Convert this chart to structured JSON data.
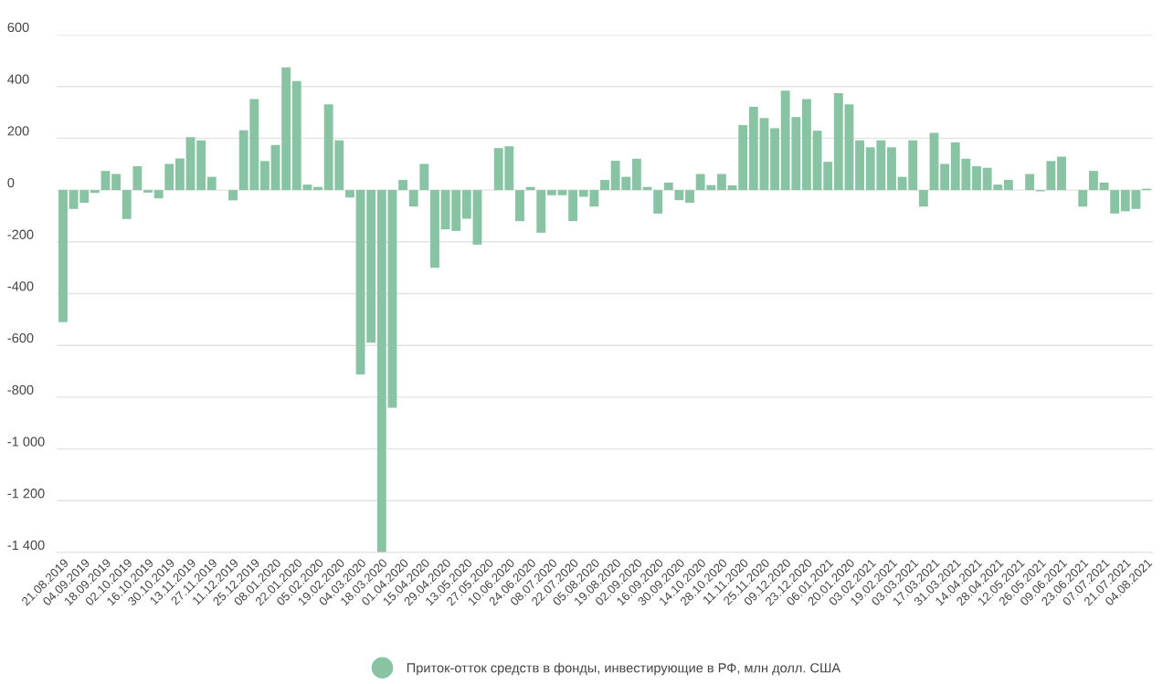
{
  "chart_data": {
    "type": "bar",
    "categories": [
      "21.08.2019",
      null,
      "04.09.2019",
      null,
      "18.09.2019",
      null,
      "02.10.2019",
      null,
      "16.10.2019",
      null,
      "30.10.2019",
      null,
      "13.11.2019",
      null,
      "27.11.2019",
      null,
      "11.12.2019",
      null,
      "25.12.2019",
      null,
      "08.01.2020",
      null,
      "22.01.2020",
      null,
      "05.02.2020",
      null,
      "19.02.2020",
      null,
      "04.03.2020",
      null,
      "18.03.2020",
      null,
      "01.04.2020",
      null,
      "15.04.2020",
      null,
      "29.04.2020",
      null,
      "13.05.2020",
      null,
      "27.05.2020",
      null,
      "10.06.2020",
      null,
      "24.06.2020",
      null,
      "08.07.2020",
      null,
      "22.07.2020",
      null,
      "05.08.2020",
      null,
      "19.08.2020",
      null,
      "02.09.2020",
      null,
      "16.09.2020",
      null,
      "30.09.2020",
      null,
      "14.10.2020",
      null,
      "28.10.2020",
      null,
      "11.11.2020",
      null,
      "25.11.2020",
      null,
      "09.12.2020",
      null,
      "23.12.2020",
      null,
      "06.01.2021",
      null,
      "20.01.2020",
      null,
      "03.02.2021",
      null,
      "19.02.2021",
      null,
      "03.03.2021",
      null,
      "17.03.2021",
      null,
      "31.03.2021",
      null,
      "14.04.2021",
      null,
      "28.04.2021",
      null,
      "12.05.2021",
      null,
      "26.05.2021",
      null,
      "09.06.2021",
      null,
      "23.06.2021",
      null,
      "07.07.2021",
      null,
      "21.07.2021",
      null,
      "04.08.2021"
    ],
    "series": [
      {
        "name": "Приток-отток средств в фонды, инвестирующие в РФ, млн долл. США",
        "color": "#88c4a4",
        "values": [
          -510,
          -73,
          -49,
          -11,
          74,
          62,
          -112,
          92,
          -10,
          -32,
          101,
          122,
          204,
          192,
          51,
          0,
          -40,
          231,
          351,
          112,
          174,
          474,
          421,
          21,
          12,
          331,
          192,
          -29,
          -712,
          -590,
          -1400,
          -841,
          39,
          -64,
          101,
          -300,
          -152,
          -158,
          -111,
          -211,
          0,
          162,
          169,
          -120,
          12,
          -165,
          -20,
          -20,
          -120,
          -26,
          -64,
          39,
          113,
          51,
          121,
          12,
          -91,
          29,
          -39,
          -49,
          62,
          19,
          62,
          18,
          251,
          321,
          278,
          239,
          384,
          282,
          351,
          229,
          109,
          374,
          331,
          192,
          165,
          192,
          165,
          51,
          192,
          -64,
          221,
          101,
          184,
          121,
          92,
          86,
          21,
          39,
          0,
          62,
          -5,
          112,
          129,
          0,
          -64,
          74,
          29,
          -91,
          -82,
          -73,
          5
        ]
      }
    ],
    "ylim": [
      -1400,
      600
    ],
    "yticks": [
      600,
      400,
      200,
      0,
      -200,
      -400,
      -600,
      -800,
      {
        "value": -1000,
        "label": "-1 000"
      },
      {
        "value": -1200,
        "label": "-1 200"
      },
      {
        "value": -1400,
        "label": "-1 400"
      }
    ],
    "grid": "y",
    "legend": "bottom"
  }
}
